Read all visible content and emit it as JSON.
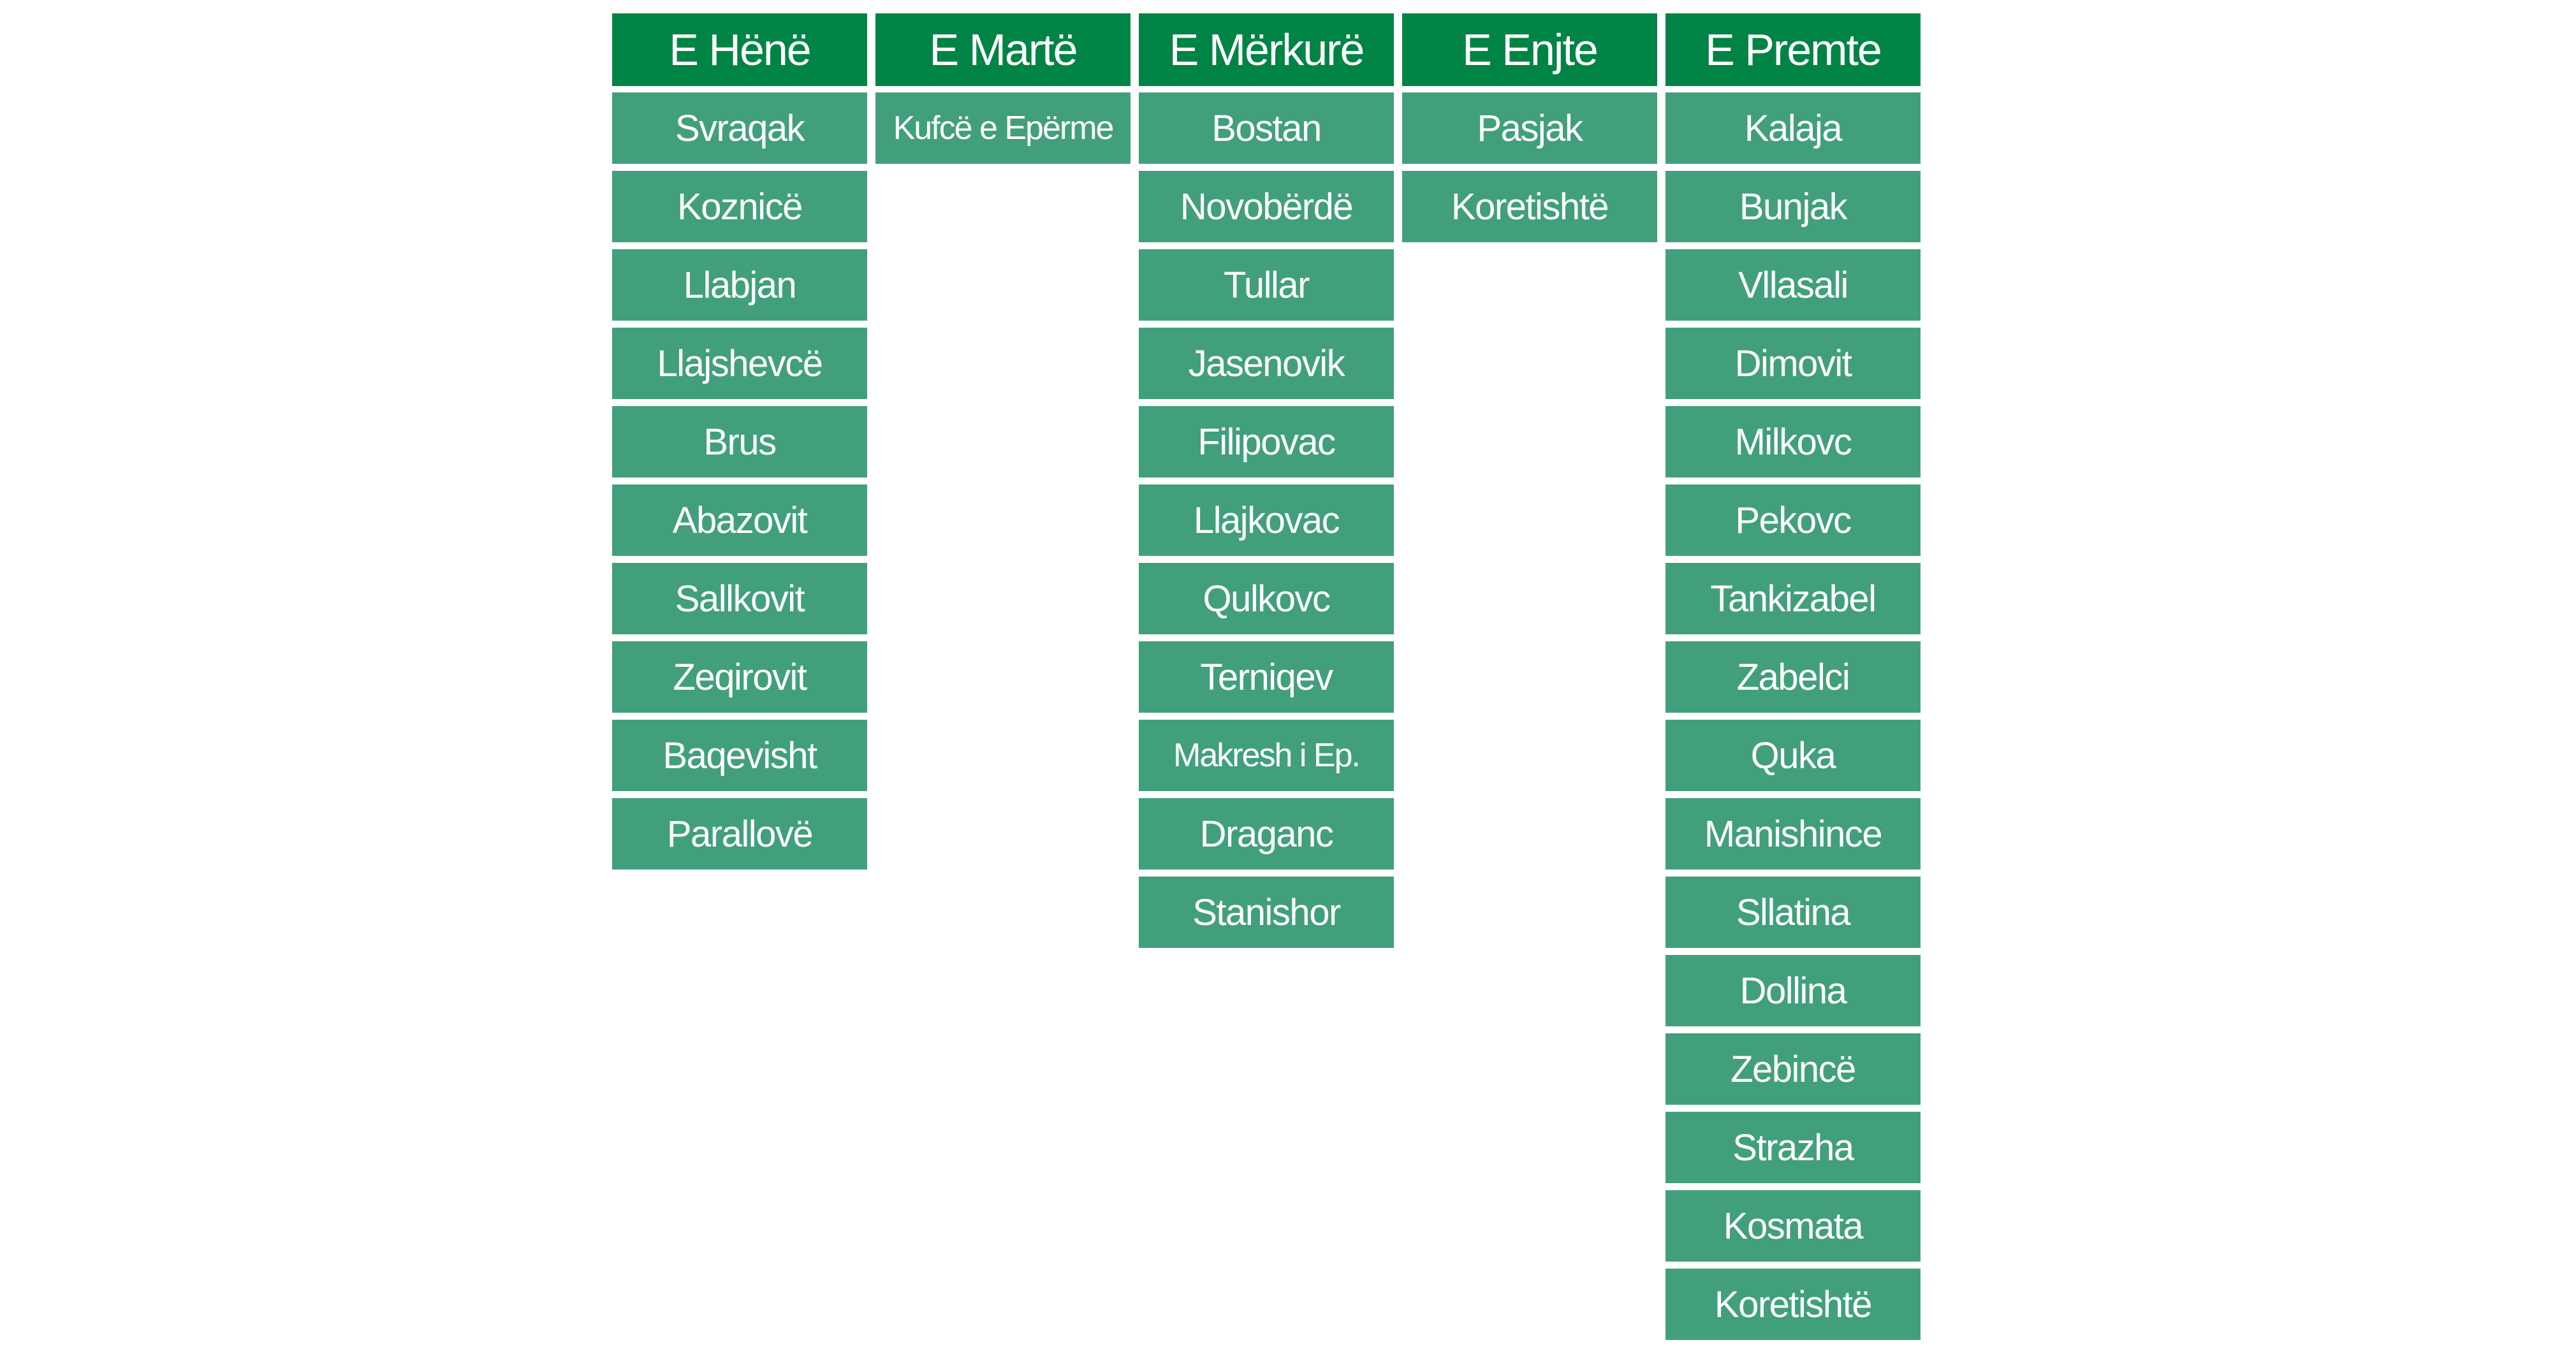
{
  "schedule": {
    "days": [
      {
        "name": "E Hënë",
        "villages": [
          "Svraqak",
          "Koznicë",
          "Llabjan",
          "Llajshevcë",
          "Brus",
          "Abazovit",
          "Sallkovit",
          "Zeqirovit",
          "Baqevisht",
          "Parallovë"
        ]
      },
      {
        "name": "E Martë",
        "villages": [
          "Kufcë e Epërme"
        ]
      },
      {
        "name": "E Mërkurë",
        "villages": [
          "Bostan",
          "Novobërdë",
          "Tullar",
          "Jasenovik",
          "Filipovac",
          "Llajkovac",
          "Qulkovc",
          "Terniqev",
          "Makresh i Ep.",
          "Draganc",
          "Stanishor"
        ]
      },
      {
        "name": "E Enjte",
        "villages": [
          "Pasjak",
          "Koretishtë"
        ]
      },
      {
        "name": "E Premte",
        "villages": [
          "Kalaja",
          "Bunjak",
          "Vllasali",
          "Dimovit",
          "Milkovc",
          "Pekovc",
          "Tankizabel",
          "Zabelci",
          "Quka",
          "Manishince",
          "Sllatina",
          "Dollina",
          "Zebincë",
          "Strazha",
          "Kosmata",
          "Koretishtë"
        ]
      }
    ]
  },
  "colors": {
    "header_bg": "#008445",
    "cell_bg": "#41a07b",
    "text": "#ffffff"
  }
}
